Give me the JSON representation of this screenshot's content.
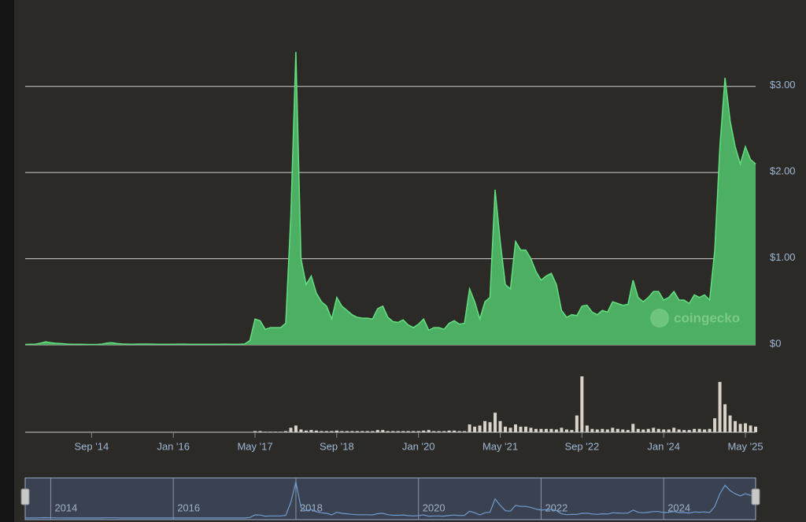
{
  "chart_data": {
    "type": "area",
    "watermark": "coingecko",
    "color": "#4caf63",
    "line_color": "#63e07e",
    "x": [
      "2013-08",
      "2013-09",
      "2013-10",
      "2013-11",
      "2013-12",
      "2014-01",
      "2014-02",
      "2014-03",
      "2014-04",
      "2014-05",
      "2014-06",
      "2014-07",
      "2014-08",
      "2014-09",
      "2014-10",
      "2014-11",
      "2014-12",
      "2015-01",
      "2015-02",
      "2015-03",
      "2015-04",
      "2015-05",
      "2015-06",
      "2015-07",
      "2015-08",
      "2015-09",
      "2015-10",
      "2015-11",
      "2015-12",
      "2016-01",
      "2016-02",
      "2016-03",
      "2016-04",
      "2016-05",
      "2016-06",
      "2016-07",
      "2016-08",
      "2016-09",
      "2016-10",
      "2016-11",
      "2016-12",
      "2017-01",
      "2017-02",
      "2017-03",
      "2017-04",
      "2017-05",
      "2017-06",
      "2017-07",
      "2017-08",
      "2017-09",
      "2017-10",
      "2017-11",
      "2017-12",
      "2018-01",
      "2018-02",
      "2018-03",
      "2018-04",
      "2018-05",
      "2018-06",
      "2018-07",
      "2018-08",
      "2018-09",
      "2018-10",
      "2018-11",
      "2018-12",
      "2019-01",
      "2019-02",
      "2019-03",
      "2019-04",
      "2019-05",
      "2019-06",
      "2019-07",
      "2019-08",
      "2019-09",
      "2019-10",
      "2019-11",
      "2019-12",
      "2020-01",
      "2020-02",
      "2020-03",
      "2020-04",
      "2020-05",
      "2020-06",
      "2020-07",
      "2020-08",
      "2020-09",
      "2020-10",
      "2020-11",
      "2020-12",
      "2021-01",
      "2021-02",
      "2021-03",
      "2021-04",
      "2021-05",
      "2021-06",
      "2021-07",
      "2021-08",
      "2021-09",
      "2021-10",
      "2021-11",
      "2021-12",
      "2022-01",
      "2022-02",
      "2022-03",
      "2022-04",
      "2022-05",
      "2022-06",
      "2022-07",
      "2022-08",
      "2022-09",
      "2022-10",
      "2022-11",
      "2022-12",
      "2023-01",
      "2023-02",
      "2023-03",
      "2023-04",
      "2023-05",
      "2023-06",
      "2023-07",
      "2023-08",
      "2023-09",
      "2023-10",
      "2023-11",
      "2023-12",
      "2024-01",
      "2024-02",
      "2024-03",
      "2024-04",
      "2024-05",
      "2024-06",
      "2024-07",
      "2024-08",
      "2024-09",
      "2024-10",
      "2024-11",
      "2024-12",
      "2025-01",
      "2025-02",
      "2025-03",
      "2025-04",
      "2025-05",
      "2025-06",
      "2025-07"
    ],
    "values": [
      0.005,
      0.006,
      0.008,
      0.02,
      0.035,
      0.025,
      0.018,
      0.015,
      0.01,
      0.006,
      0.006,
      0.006,
      0.005,
      0.005,
      0.005,
      0.008,
      0.02,
      0.025,
      0.015,
      0.01,
      0.008,
      0.007,
      0.009,
      0.009,
      0.009,
      0.008,
      0.007,
      0.006,
      0.006,
      0.007,
      0.008,
      0.008,
      0.007,
      0.006,
      0.006,
      0.006,
      0.006,
      0.006,
      0.007,
      0.008,
      0.007,
      0.006,
      0.006,
      0.01,
      0.05,
      0.3,
      0.28,
      0.18,
      0.2,
      0.2,
      0.2,
      0.25,
      1.5,
      3.4,
      1.0,
      0.7,
      0.8,
      0.6,
      0.5,
      0.45,
      0.3,
      0.55,
      0.45,
      0.4,
      0.35,
      0.32,
      0.31,
      0.31,
      0.3,
      0.42,
      0.45,
      0.32,
      0.27,
      0.26,
      0.29,
      0.23,
      0.2,
      0.24,
      0.3,
      0.17,
      0.2,
      0.2,
      0.18,
      0.25,
      0.28,
      0.24,
      0.25,
      0.65,
      0.5,
      0.3,
      0.5,
      0.55,
      1.8,
      1.2,
      0.7,
      0.65,
      1.2,
      1.1,
      1.1,
      1.0,
      0.85,
      0.75,
      0.8,
      0.83,
      0.7,
      0.4,
      0.32,
      0.35,
      0.34,
      0.45,
      0.46,
      0.38,
      0.35,
      0.4,
      0.38,
      0.5,
      0.48,
      0.46,
      0.47,
      0.75,
      0.55,
      0.5,
      0.55,
      0.62,
      0.62,
      0.52,
      0.55,
      0.62,
      0.52,
      0.52,
      0.48,
      0.58,
      0.55,
      0.58,
      0.52,
      1.1,
      2.3,
      3.1,
      2.6,
      2.3,
      2.1,
      2.3,
      2.15,
      2.1
    ],
    "xlim": [
      "2013-08",
      "2025-07"
    ],
    "ylim": [
      0,
      3.5
    ],
    "yticks": [
      {
        "value": 0,
        "label": "$0"
      },
      {
        "value": 1,
        "label": "$1.00"
      },
      {
        "value": 2,
        "label": "$2.00"
      },
      {
        "value": 3,
        "label": "$3.00"
      }
    ],
    "xticks": [
      {
        "value": "2014-09",
        "label": "Sep '14"
      },
      {
        "value": "2016-01",
        "label": "Jan '16"
      },
      {
        "value": "2017-05",
        "label": "May '17"
      },
      {
        "value": "2018-09",
        "label": "Sep '18"
      },
      {
        "value": "2020-01",
        "label": "Jan '20"
      },
      {
        "value": "2021-05",
        "label": "May '21"
      },
      {
        "value": "2022-09",
        "label": "Sep '22"
      },
      {
        "value": "2024-01",
        "label": "Jan '24"
      },
      {
        "value": "2025-05",
        "label": "May '25"
      }
    ],
    "grid": true,
    "volume": {
      "color": "#d8d2c8",
      "ylim": [
        0,
        100
      ],
      "values": [
        0,
        0,
        0,
        0,
        0.5,
        0.5,
        0.3,
        0.2,
        0.1,
        0.1,
        0.1,
        0.1,
        0.1,
        0.1,
        0.1,
        0.1,
        0.2,
        0.2,
        0.1,
        0.1,
        0.1,
        0.1,
        0.1,
        0.1,
        0.1,
        0.1,
        0.1,
        0.1,
        0.1,
        0.1,
        0.1,
        0.1,
        0.1,
        0.1,
        0.1,
        0.1,
        0.1,
        0.1,
        0.1,
        0.1,
        0.1,
        0.1,
        0.1,
        0.2,
        0.5,
        2,
        2,
        1,
        1,
        1,
        1,
        2,
        8,
        12,
        5,
        3,
        4,
        3,
        2,
        2,
        2,
        3,
        2,
        2,
        2,
        2,
        2,
        2,
        2,
        4,
        4,
        2,
        2,
        2,
        2,
        2,
        2,
        2,
        3,
        4,
        2,
        2,
        2,
        3,
        3,
        2,
        2,
        14,
        10,
        12,
        20,
        18,
        35,
        20,
        10,
        8,
        14,
        10,
        10,
        8,
        6,
        6,
        6,
        6,
        5,
        8,
        5,
        4,
        30,
        100,
        12,
        6,
        5,
        6,
        5,
        8,
        6,
        5,
        4,
        15,
        6,
        5,
        6,
        8,
        6,
        5,
        5,
        8,
        5,
        4,
        4,
        6,
        6,
        5,
        6,
        25,
        90,
        50,
        30,
        20,
        15,
        16,
        12,
        10
      ]
    },
    "navigator_ticks": [
      {
        "value": "2014-01",
        "label": "2014"
      },
      {
        "value": "2016-01",
        "label": "2016"
      },
      {
        "value": "2018-01",
        "label": "2018"
      },
      {
        "value": "2020-01",
        "label": "2020"
      },
      {
        "value": "2022-01",
        "label": "2022"
      },
      {
        "value": "2024-01",
        "label": "2024"
      }
    ]
  }
}
